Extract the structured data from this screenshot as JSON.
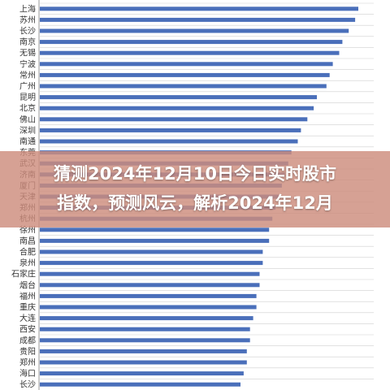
{
  "overlay": {
    "line1": "猜测2024年12月10日今日实时股市",
    "line2": "指数，预测风云，解析2024年12月"
  },
  "colors": {
    "bar": "#4a6fba",
    "grid": "#cfcfcf",
    "overlay": "#cd8c7d"
  },
  "chart_data": {
    "type": "bar",
    "orientation": "horizontal",
    "title": "",
    "xlabel": "",
    "ylabel": "",
    "grid": true,
    "xlim": [
      0,
      100
    ],
    "categories": [
      "上海",
      "苏州",
      "长沙",
      "南京",
      "无锡",
      "宁波",
      "常州",
      "广州",
      "昆明",
      "北京",
      "佛山",
      "深圳",
      "南通",
      "东莞",
      "武汉",
      "济南",
      "厦门",
      "天津",
      "郑州",
      "杭州",
      "徐州",
      "南昌",
      "合肥",
      "泉州",
      "石家庄",
      "烟台",
      "福州",
      "重庆",
      "大连",
      "西安",
      "成都",
      "贵阳",
      "郑州",
      "海口",
      "长沙"
    ],
    "values": [
      100,
      99,
      97,
      95,
      94,
      92,
      91,
      90,
      87,
      86,
      84,
      82,
      81,
      79,
      78,
      77,
      76,
      75,
      74,
      73,
      72,
      72,
      70,
      70,
      69,
      69,
      68,
      68,
      67,
      66,
      66,
      65,
      65,
      64,
      63
    ]
  }
}
